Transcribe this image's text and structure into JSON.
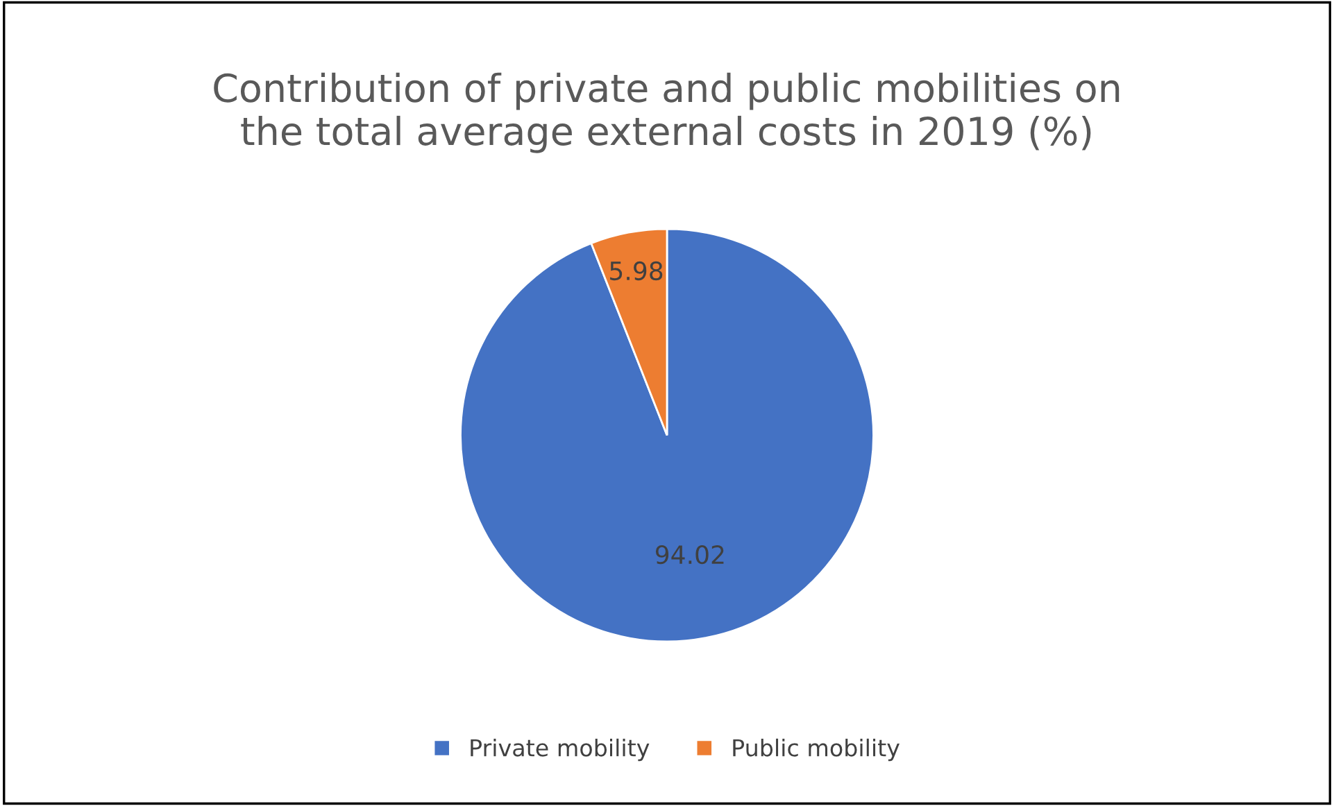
{
  "chart_data": {
    "type": "pie",
    "title": "Contribution of private and public mobilities on\nthe total average external costs in 2019 (%)",
    "categories": [
      "Private mobility",
      "Public mobility"
    ],
    "values": [
      94.02,
      5.98
    ],
    "colors": [
      "#4472c4",
      "#ed7d31"
    ],
    "data_labels": true,
    "legend": "bottom"
  }
}
